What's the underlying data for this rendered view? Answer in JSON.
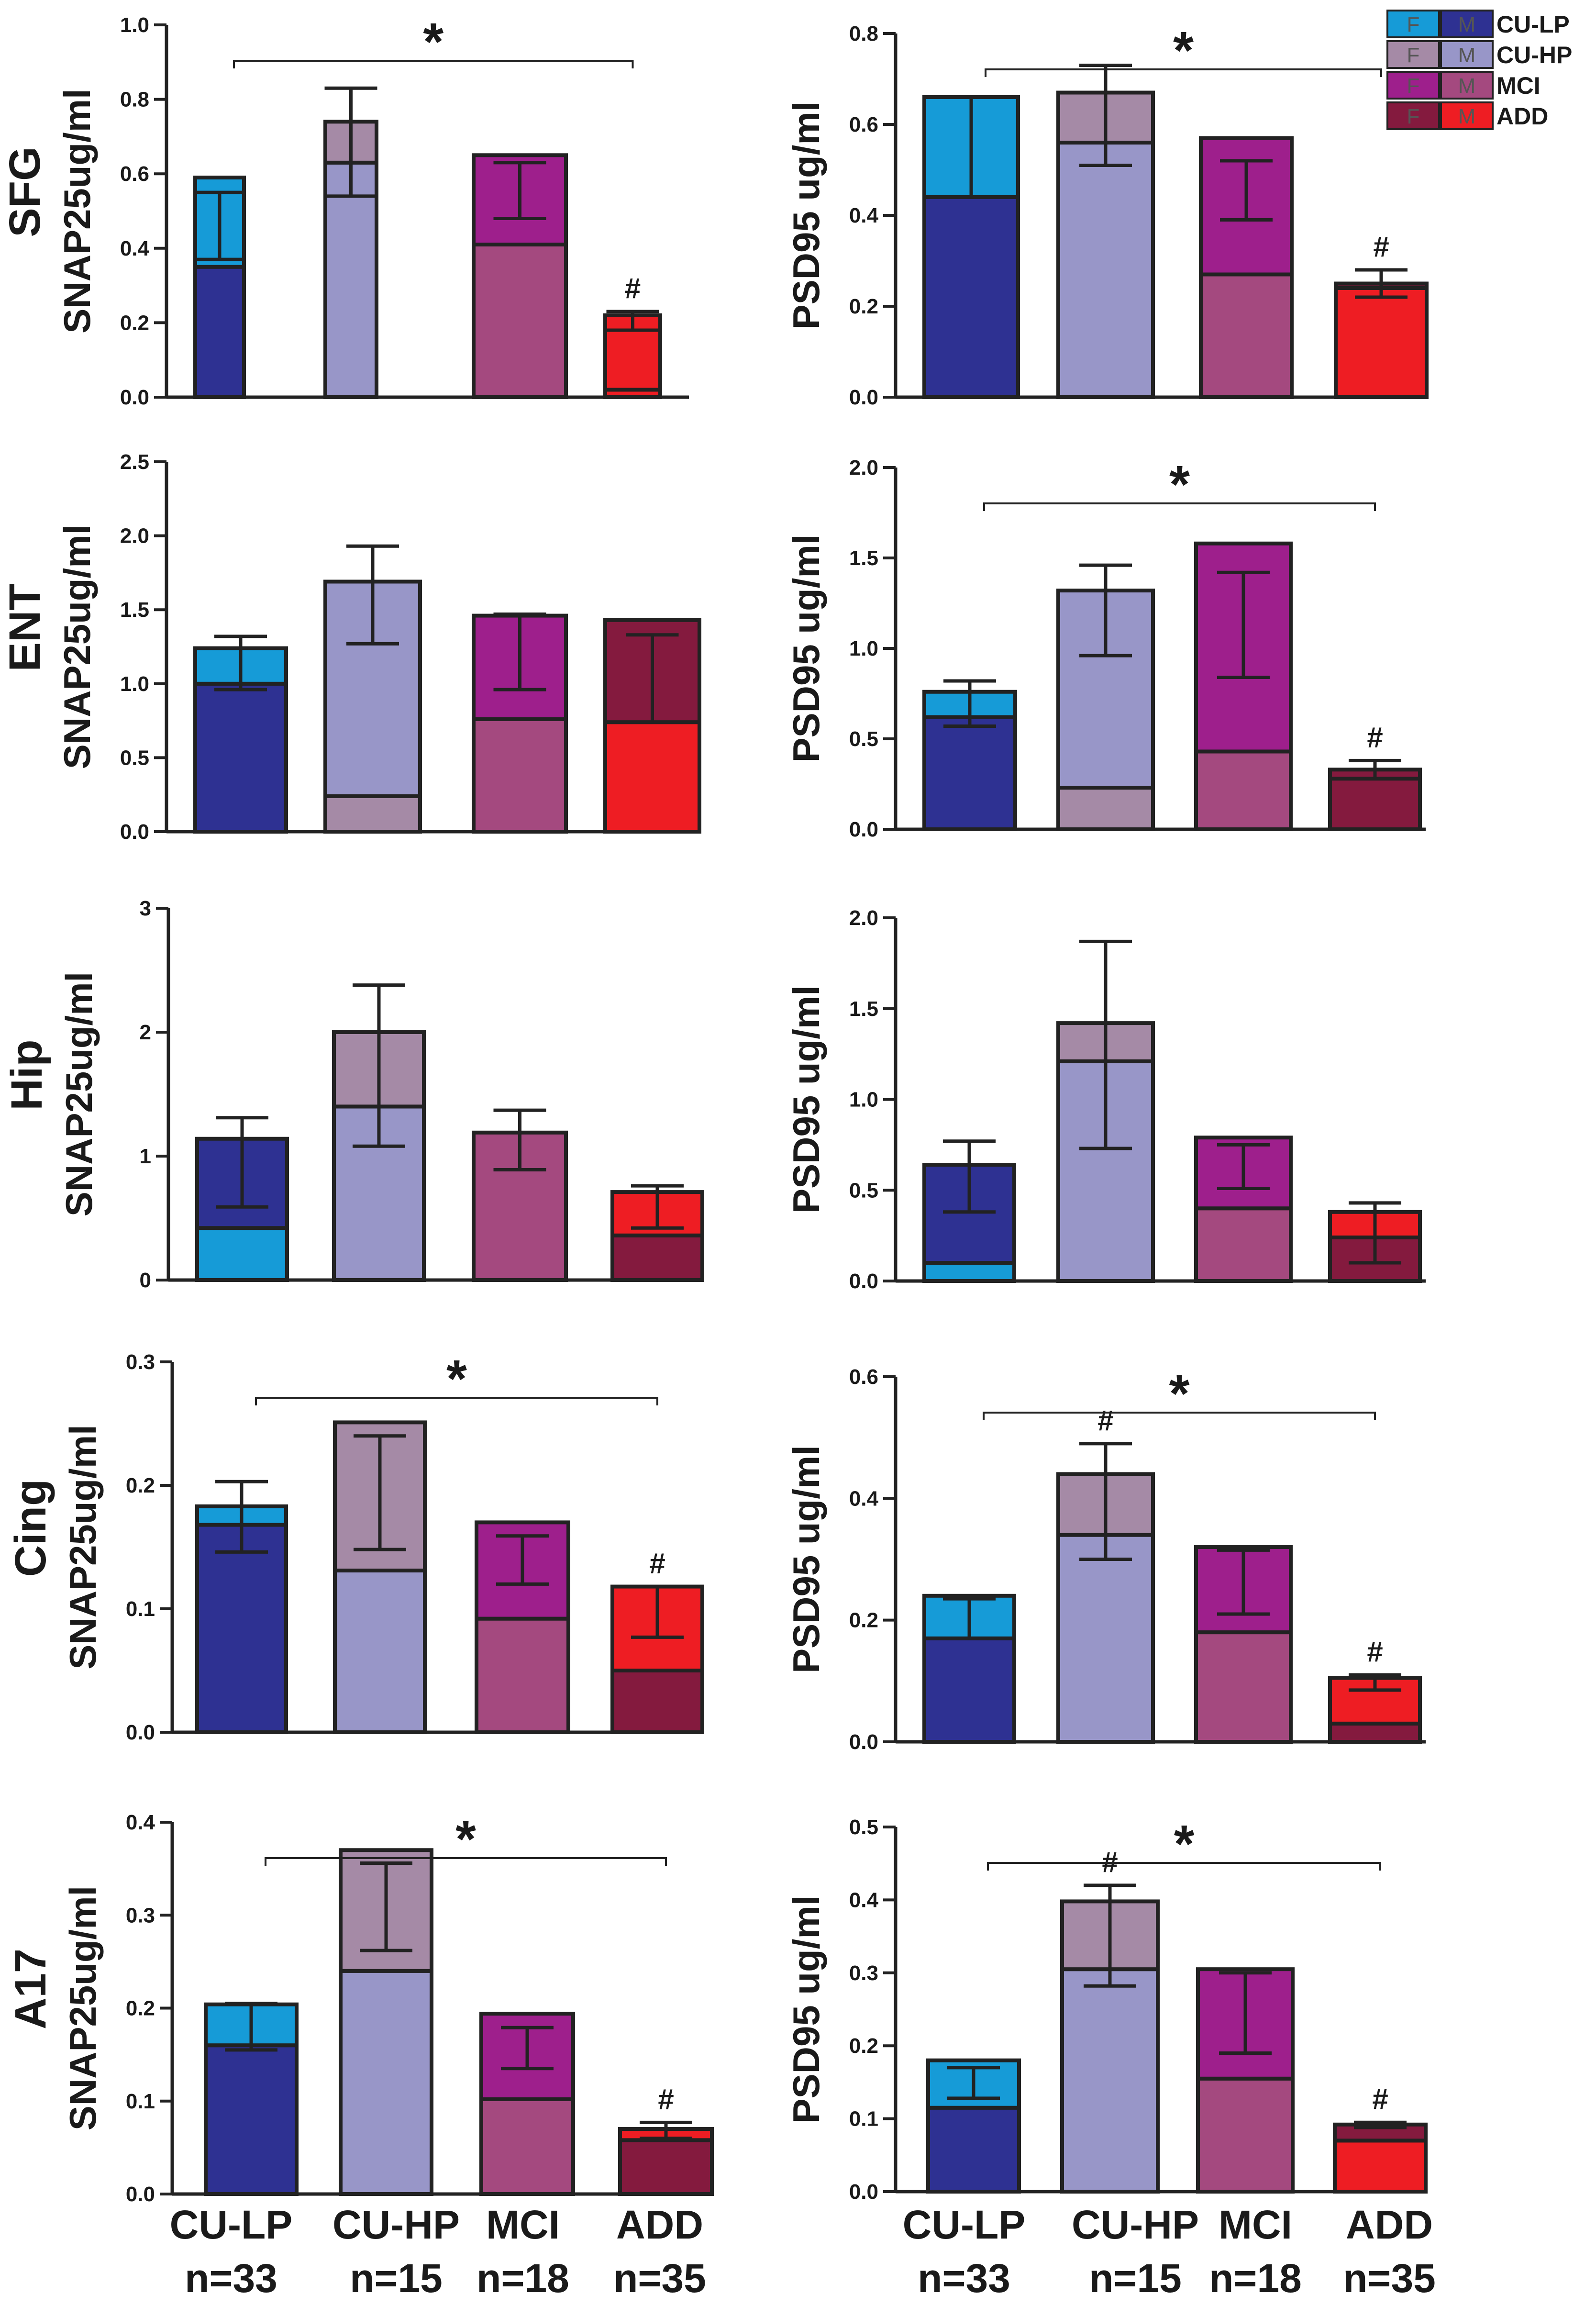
{
  "legend": {
    "f_label": "F",
    "m_label": "M",
    "items": [
      {
        "name": "CU-LP",
        "female_color": "#169bd7",
        "male_color": "#2e3192"
      },
      {
        "name": "CU-HP",
        "female_color": "#a58aa6",
        "male_color": "#9896c8"
      },
      {
        "name": "MCI",
        "female_color": "#9e1f8c",
        "male_color": "#a4497f"
      },
      {
        "name": "ADD",
        "female_color": "#841a3e",
        "male_color": "#ee1d23"
      }
    ]
  },
  "x_axis": {
    "categories": [
      "CU-LP",
      "CU-HP",
      "MCI",
      "ADD"
    ],
    "counts": [
      "n=33",
      "n=15",
      "n=18",
      "n=35"
    ]
  },
  "chart_data": [
    {
      "type": "bar",
      "region": "SFG",
      "ylabel": "SNAP25ug/ml",
      "ylim": [
        0,
        1.0
      ],
      "yticks": [
        "0.0",
        "0.2",
        "0.4",
        "0.6",
        "0.8",
        "1.0"
      ],
      "categories": [
        "CU-LP",
        "CU-HP",
        "MCI",
        "ADD"
      ],
      "bottom_values": [
        0.35,
        0.63,
        0.41,
        0.02
      ],
      "total_values": [
        0.59,
        0.74,
        0.65,
        0.22
      ],
      "bottom_colors": [
        "#2e3192",
        "#9896c8",
        "#a4497f",
        "#ee1d23"
      ],
      "top_colors": [
        "#169bd7",
        "#a58aa6",
        "#9e1f8c",
        "#ee1d23"
      ],
      "error_low": [
        0.37,
        0.54,
        0.48,
        0.18
      ],
      "error_high": [
        0.55,
        0.83,
        0.63,
        0.23
      ],
      "significance": {
        "star": "*",
        "from": 0,
        "to": 3
      },
      "hash_marks": [
        false,
        false,
        false,
        true
      ]
    },
    {
      "type": "bar",
      "region": "SFG",
      "ylabel": "PSD95 ug/ml",
      "ylim": [
        0,
        0.8
      ],
      "yticks": [
        "0.0",
        "0.2",
        "0.4",
        "0.6",
        "0.8"
      ],
      "categories": [
        "CU-LP",
        "CU-HP",
        "MCI",
        "ADD"
      ],
      "bottom_values": [
        0.44,
        0.56,
        0.27,
        0.24
      ],
      "total_values": [
        0.66,
        0.67,
        0.57,
        0.25
      ],
      "bottom_colors": [
        "#2e3192",
        "#9896c8",
        "#a4497f",
        "#ee1d23"
      ],
      "top_colors": [
        "#169bd7",
        "#a58aa6",
        "#9e1f8c",
        "#841a3e"
      ],
      "error_low": [
        0.44,
        0.51,
        0.39,
        0.22
      ],
      "error_high": [
        0.66,
        0.73,
        0.52,
        0.28
      ],
      "significance": {
        "star": "*",
        "from": 0,
        "to": 3
      },
      "hash_marks": [
        false,
        false,
        false,
        true
      ]
    },
    {
      "type": "bar",
      "region": "ENT",
      "ylabel": "SNAP25ug/ml",
      "ylim": [
        0,
        2.5
      ],
      "yticks": [
        "0.0",
        "0.5",
        "1.0",
        "1.5",
        "2.0",
        "2.5"
      ],
      "categories": [
        "CU-LP",
        "CU-HP",
        "MCI",
        "ADD"
      ],
      "bottom_values": [
        1.0,
        0.24,
        0.76,
        0.74
      ],
      "total_values": [
        1.24,
        1.69,
        1.46,
        1.43
      ],
      "bottom_colors": [
        "#2e3192",
        "#a58aa6",
        "#a4497f",
        "#ee1d23"
      ],
      "top_colors": [
        "#169bd7",
        "#9896c8",
        "#9e1f8c",
        "#841a3e"
      ],
      "error_low": [
        0.96,
        1.27,
        0.96,
        0.74
      ],
      "error_high": [
        1.32,
        1.93,
        1.47,
        1.33
      ],
      "significance": null,
      "hash_marks": [
        false,
        false,
        false,
        false
      ]
    },
    {
      "type": "bar",
      "region": "ENT",
      "ylabel": "PSD95 ug/ml",
      "ylim": [
        0,
        2.0
      ],
      "yticks": [
        "0.0",
        "0.5",
        "1.0",
        "1.5",
        "2.0"
      ],
      "categories": [
        "CU-LP",
        "CU-HP",
        "MCI",
        "ADD"
      ],
      "bottom_values": [
        0.62,
        0.23,
        0.43,
        0.28
      ],
      "total_values": [
        0.76,
        1.32,
        1.58,
        0.33
      ],
      "bottom_colors": [
        "#2e3192",
        "#a58aa6",
        "#a4497f",
        "#841a3e"
      ],
      "top_colors": [
        "#169bd7",
        "#9896c8",
        "#9e1f8c",
        "#841a3e"
      ],
      "error_low": [
        0.57,
        0.96,
        0.84,
        0.28
      ],
      "error_high": [
        0.82,
        1.46,
        1.42,
        0.38
      ],
      "significance": {
        "star": "*",
        "from": 0,
        "to": 3
      },
      "hash_marks": [
        false,
        false,
        false,
        true
      ]
    },
    {
      "type": "bar",
      "region": "Hip",
      "ylabel": "SNAP25ug/ml",
      "ylim": [
        0,
        3
      ],
      "yticks": [
        "0",
        "1",
        "2",
        "3"
      ],
      "categories": [
        "CU-LP",
        "CU-HP",
        "MCI",
        "ADD"
      ],
      "bottom_values": [
        0.42,
        1.4,
        0.0,
        0.36
      ],
      "total_values": [
        1.14,
        2.0,
        1.19,
        0.71
      ],
      "bottom_colors": [
        "#169bd7",
        "#9896c8",
        "#a4497f",
        "#841a3e"
      ],
      "top_colors": [
        "#2e3192",
        "#a58aa6",
        "#a4497f",
        "#ee1d23"
      ],
      "error_low": [
        0.59,
        1.08,
        0.89,
        0.42
      ],
      "error_high": [
        1.31,
        2.38,
        1.37,
        0.76
      ],
      "significance": null,
      "hash_marks": [
        false,
        false,
        false,
        false
      ]
    },
    {
      "type": "bar",
      "region": "Hip",
      "ylabel": "PSD95 ug/ml",
      "ylim": [
        0,
        2.0
      ],
      "yticks": [
        "0.0",
        "0.5",
        "1.0",
        "1.5",
        "2.0"
      ],
      "categories": [
        "CU-LP",
        "CU-HP",
        "MCI",
        "ADD"
      ],
      "bottom_values": [
        0.1,
        1.21,
        0.4,
        0.24
      ],
      "total_values": [
        0.64,
        1.42,
        0.79,
        0.38
      ],
      "bottom_colors": [
        "#169bd7",
        "#9896c8",
        "#a4497f",
        "#841a3e"
      ],
      "top_colors": [
        "#2e3192",
        "#a58aa6",
        "#9e1f8c",
        "#ee1d23"
      ],
      "error_low": [
        0.38,
        0.73,
        0.51,
        0.1
      ],
      "error_high": [
        0.77,
        1.87,
        0.75,
        0.43
      ],
      "significance": null,
      "hash_marks": [
        false,
        false,
        false,
        false
      ]
    },
    {
      "type": "bar",
      "region": "Cing",
      "ylabel": "SNAP25ug/ml",
      "ylim": [
        0,
        0.3
      ],
      "yticks": [
        "0.0",
        "0.1",
        "0.2",
        "0.3"
      ],
      "categories": [
        "CU-LP",
        "CU-HP",
        "MCI",
        "ADD"
      ],
      "bottom_values": [
        0.168,
        0.131,
        0.092,
        0.05
      ],
      "total_values": [
        0.183,
        0.251,
        0.17,
        0.118
      ],
      "bottom_colors": [
        "#2e3192",
        "#9896c8",
        "#a4497f",
        "#841a3e"
      ],
      "top_colors": [
        "#169bd7",
        "#a58aa6",
        "#9e1f8c",
        "#ee1d23"
      ],
      "error_low": [
        0.146,
        0.148,
        0.12,
        0.077
      ],
      "error_high": [
        0.203,
        0.24,
        0.159,
        0.118
      ],
      "significance": {
        "star": "*",
        "from": 0,
        "to": 3
      },
      "hash_marks": [
        false,
        false,
        false,
        true
      ]
    },
    {
      "type": "bar",
      "region": "Cing",
      "ylabel": "PSD95 ug/ml",
      "ylim": [
        0,
        0.6
      ],
      "yticks": [
        "0.0",
        "0.2",
        "0.4",
        "0.6"
      ],
      "categories": [
        "CU-LP",
        "CU-HP",
        "MCI",
        "ADD"
      ],
      "bottom_values": [
        0.17,
        0.34,
        0.18,
        0.03
      ],
      "total_values": [
        0.24,
        0.44,
        0.32,
        0.105
      ],
      "bottom_colors": [
        "#2e3192",
        "#9896c8",
        "#a4497f",
        "#841a3e"
      ],
      "top_colors": [
        "#169bd7",
        "#a58aa6",
        "#9e1f8c",
        "#ee1d23"
      ],
      "error_low": [
        0.17,
        0.3,
        0.21,
        0.085
      ],
      "error_high": [
        0.235,
        0.49,
        0.315,
        0.11
      ],
      "significance": {
        "star": "*",
        "from": 0,
        "to": 3
      },
      "hash_marks": [
        false,
        true,
        false,
        true
      ]
    },
    {
      "type": "bar",
      "region": "A17",
      "ylabel": "SNAP25ug/ml",
      "ylim": [
        0,
        0.4
      ],
      "yticks": [
        "0.0",
        "0.1",
        "0.2",
        "0.3",
        "0.4"
      ],
      "categories": [
        "CU-LP",
        "CU-HP",
        "MCI",
        "ADD"
      ],
      "bottom_values": [
        0.16,
        0.24,
        0.102,
        0.058
      ],
      "total_values": [
        0.204,
        0.37,
        0.194,
        0.07
      ],
      "bottom_colors": [
        "#2e3192",
        "#9896c8",
        "#a4497f",
        "#841a3e"
      ],
      "top_colors": [
        "#169bd7",
        "#a58aa6",
        "#9e1f8c",
        "#ee1d23"
      ],
      "error_low": [
        0.155,
        0.262,
        0.135,
        0.06
      ],
      "error_high": [
        0.205,
        0.356,
        0.179,
        0.077
      ],
      "significance": {
        "star": "*",
        "from": 0,
        "to": 3
      },
      "hash_marks": [
        false,
        false,
        false,
        true
      ]
    },
    {
      "type": "bar",
      "region": "A17",
      "ylabel": "PSD95 ug/ml",
      "ylim": [
        0,
        0.5
      ],
      "yticks": [
        "0.0",
        "0.1",
        "0.2",
        "0.3",
        "0.4",
        "0.5"
      ],
      "categories": [
        "CU-LP",
        "CU-HP",
        "MCI",
        "ADD"
      ],
      "bottom_values": [
        0.115,
        0.305,
        0.155,
        0.07
      ],
      "total_values": [
        0.18,
        0.398,
        0.305,
        0.092
      ],
      "bottom_colors": [
        "#2e3192",
        "#9896c8",
        "#a4497f",
        "#ee1d23"
      ],
      "top_colors": [
        "#169bd7",
        "#a58aa6",
        "#9e1f8c",
        "#841a3e"
      ],
      "error_low": [
        0.128,
        0.282,
        0.19,
        0.088
      ],
      "error_high": [
        0.17,
        0.42,
        0.3,
        0.095
      ],
      "significance": {
        "star": "*",
        "from": 0,
        "to": 3
      },
      "hash_marks": [
        false,
        true,
        false,
        true
      ]
    }
  ]
}
